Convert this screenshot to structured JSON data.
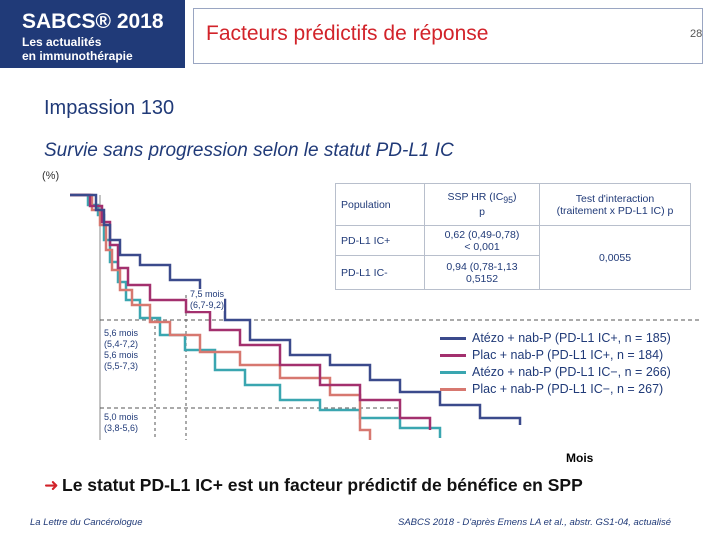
{
  "header": {
    "logo_title": "SABCS® 2018",
    "logo_lines": [
      "Les actualités",
      "en immunothérapie"
    ],
    "title": "Facteurs prédictifs de réponse",
    "page": "28"
  },
  "heading": "Impassion 130",
  "subheading": "Survie sans progression selon le statut PD-L1 IC",
  "y_unit": "(%)",
  "annotations": [
    [
      "7,5 mois",
      "(6,7-9,2)"
    ],
    [
      "5,6 mois",
      "(5,4-7,2)",
      "5,6 mois",
      "(5,5-7,3)"
    ],
    [
      "5,0 mois",
      "(3,8-5,6)"
    ]
  ],
  "table": {
    "header": [
      "Population",
      {
        "text": "SSP HR (IC",
        "sub": "95",
        "after": ")",
        "line2": "p"
      },
      [
        "Test d'interaction",
        "(traitement x PD-L1 IC) p"
      ]
    ],
    "rows": [
      [
        "PD-L1 IC+",
        [
          "0,62 (0,49-0,78)",
          "< 0,001"
        ]
      ],
      [
        "PD-L1 IC-",
        [
          "0,94 (0,78-1,13",
          "0,5152"
        ]
      ]
    ],
    "interaction": "0,0055"
  },
  "legend": [
    {
      "name": "Atézo + nab-P (PD-L1 IC+, n = 185)",
      "color": "#3b4a8c"
    },
    {
      "name": "Plac + nab-P (PD-L1 IC+, n = 184)",
      "color": "#a3306e"
    },
    {
      "name": "Atézo + nab-P (PD-L1 IC−, n = 266)",
      "color": "#3aa6b0"
    },
    {
      "name": "Plac + nab-P (PD-L1 IC−, n = 267)",
      "color": "#d77870"
    }
  ],
  "x_label": "Mois",
  "conclusion": "Le statut PD-L1 IC+ est un facteur prédictif de bénéfice en SPP",
  "footer": {
    "left": "La Lettre du Cancérologue",
    "right": "SABCS 2018 - D'après Emens LA et al., abstr. GS1-04, actualisé"
  }
}
